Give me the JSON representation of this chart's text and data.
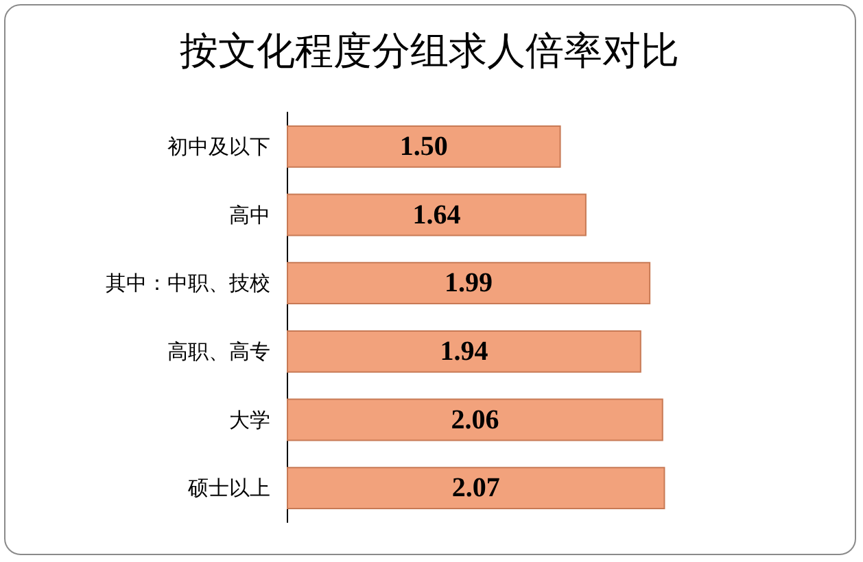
{
  "chart_data": {
    "type": "bar",
    "title": "按文化程度分组求人倍率对比",
    "orientation": "horizontal",
    "categories": [
      "初中及以下",
      "高中",
      "其中：中职、技校",
      "高职、高专",
      "大学",
      "硕士以上"
    ],
    "values": [
      1.5,
      1.64,
      1.99,
      1.94,
      2.06,
      2.07
    ],
    "value_labels": [
      "1.50",
      "1.64",
      "1.99",
      "1.94",
      "2.06",
      "2.07"
    ],
    "color": "#f2a27c"
  }
}
